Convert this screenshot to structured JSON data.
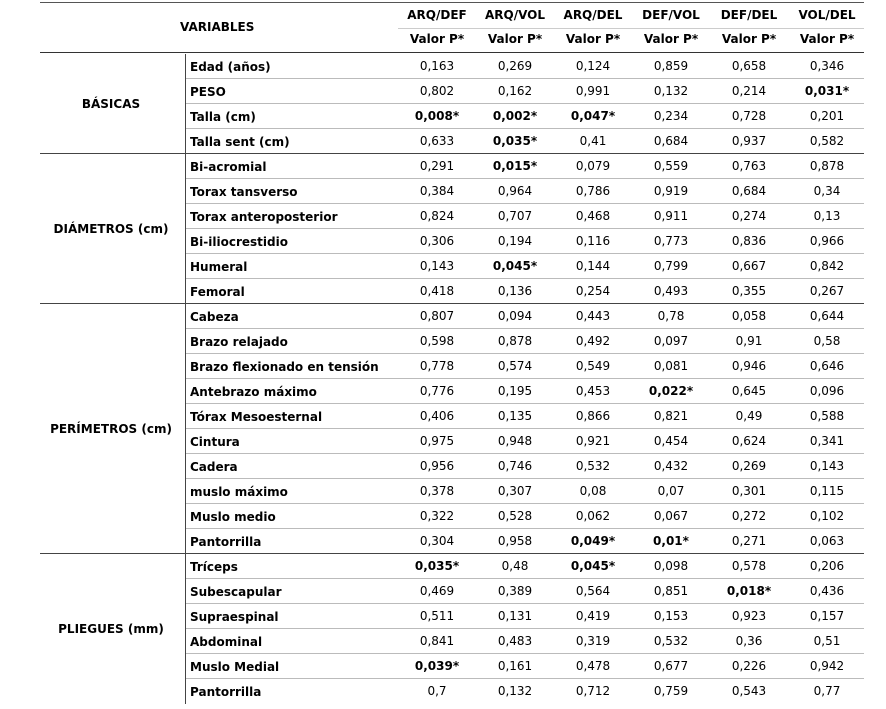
{
  "header": {
    "variables": "VARIABLES",
    "columns": [
      "ARQ/DEF",
      "ARQ/VOL",
      "ARQ/DEL",
      "DEF/VOL",
      "DEF/DEL",
      "VOL/DEL"
    ],
    "subheader": [
      "Valor P*",
      "Valor P*",
      "Valor P*",
      "Valor P*",
      "Valor P*",
      "Valor P*"
    ]
  },
  "groups": [
    {
      "name": "BÁSICAS",
      "rows": [
        {
          "label": "Edad (años)",
          "values": [
            "0,163",
            "0,269",
            "0,124",
            "0,859",
            "0,658",
            "0,346"
          ]
        },
        {
          "label": "PESO",
          "values": [
            "0,802",
            "0,162",
            "0,991",
            "0,132",
            "0,214",
            "0,031*"
          ]
        },
        {
          "label": "Talla (cm)",
          "values": [
            "0,008*",
            "0,002*",
            "0,047*",
            "0,234",
            "0,728",
            "0,201"
          ]
        },
        {
          "label": "Talla sent (cm)",
          "values": [
            "0,633",
            "0,035*",
            "0,41",
            "0,684",
            "0,937",
            "0,582"
          ]
        }
      ]
    },
    {
      "name": "DIÁMETROS (cm)",
      "rows": [
        {
          "label": "Bi-acromial",
          "values": [
            "0,291",
            "0,015*",
            "0,079",
            "0,559",
            "0,763",
            "0,878"
          ]
        },
        {
          "label": "Torax tansverso",
          "values": [
            "0,384",
            "0,964",
            "0,786",
            "0,919",
            "0,684",
            "0,34"
          ]
        },
        {
          "label": "Torax anteroposterior",
          "values": [
            "0,824",
            "0,707",
            "0,468",
            "0,911",
            "0,274",
            "0,13"
          ]
        },
        {
          "label": "Bi-iliocrestidio",
          "values": [
            "0,306",
            "0,194",
            "0,116",
            "0,773",
            "0,836",
            "0,966"
          ]
        },
        {
          "label": "Humeral",
          "values": [
            "0,143",
            "0,045*",
            "0,144",
            "0,799",
            "0,667",
            "0,842"
          ]
        },
        {
          "label": "Femoral",
          "values": [
            "0,418",
            "0,136",
            "0,254",
            "0,493",
            "0,355",
            "0,267"
          ]
        }
      ]
    },
    {
      "name": "PERÍMETROS (cm)",
      "rows": [
        {
          "label": "Cabeza",
          "values": [
            "0,807",
            "0,094",
            "0,443",
            "0,78",
            "0,058",
            "0,644"
          ]
        },
        {
          "label": "Brazo relajado",
          "values": [
            "0,598",
            "0,878",
            "0,492",
            "0,097",
            "0,91",
            "0,58"
          ]
        },
        {
          "label": "Brazo flexionado en tensión",
          "values": [
            "0,778",
            "0,574",
            "0,549",
            "0,081",
            "0,946",
            "0,646"
          ]
        },
        {
          "label": "Antebrazo máximo",
          "values": [
            "0,776",
            "0,195",
            "0,453",
            "0,022*",
            "0,645",
            "0,096"
          ]
        },
        {
          "label": "Tórax Mesoesternal",
          "values": [
            "0,406",
            "0,135",
            "0,866",
            "0,821",
            "0,49",
            "0,588"
          ]
        },
        {
          "label": "Cintura",
          "values": [
            "0,975",
            "0,948",
            "0,921",
            "0,454",
            "0,624",
            "0,341"
          ]
        },
        {
          "label": "Cadera",
          "values": [
            "0,956",
            "0,746",
            "0,532",
            "0,432",
            "0,269",
            "0,143"
          ]
        },
        {
          "label": "muslo máximo",
          "values": [
            "0,378",
            "0,307",
            "0,08",
            "0,07",
            "0,301",
            "0,115"
          ]
        },
        {
          "label": "Muslo medio",
          "values": [
            "0,322",
            "0,528",
            "0,062",
            "0,067",
            "0,272",
            "0,102"
          ]
        },
        {
          "label": "Pantorrilla",
          "values": [
            "0,304",
            "0,958",
            "0,049*",
            "0,01*",
            "0,271",
            "0,063"
          ]
        }
      ]
    },
    {
      "name": "PLIEGUES (mm)",
      "rows": [
        {
          "label": "Tríceps",
          "values": [
            "0,035*",
            "0,48",
            "0,045*",
            "0,098",
            "0,578",
            "0,206"
          ]
        },
        {
          "label": "Subescapular",
          "values": [
            "0,469",
            "0,389",
            "0,564",
            "0,851",
            "0,018*",
            "0,436"
          ]
        },
        {
          "label": "Supraespinal",
          "values": [
            "0,511",
            "0,131",
            "0,419",
            "0,153",
            "0,923",
            "0,157"
          ]
        },
        {
          "label": "Abdominal",
          "values": [
            "0,841",
            "0,483",
            "0,319",
            "0,532",
            "0,36",
            "0,51"
          ]
        },
        {
          "label": "Muslo Medial",
          "values": [
            "0,039*",
            "0,161",
            "0,478",
            "0,677",
            "0,226",
            "0,942"
          ]
        },
        {
          "label": "Pantorrilla",
          "values": [
            "0,7",
            "0,132",
            "0,712",
            "0,759",
            "0,543",
            "0,77"
          ]
        }
      ]
    }
  ]
}
